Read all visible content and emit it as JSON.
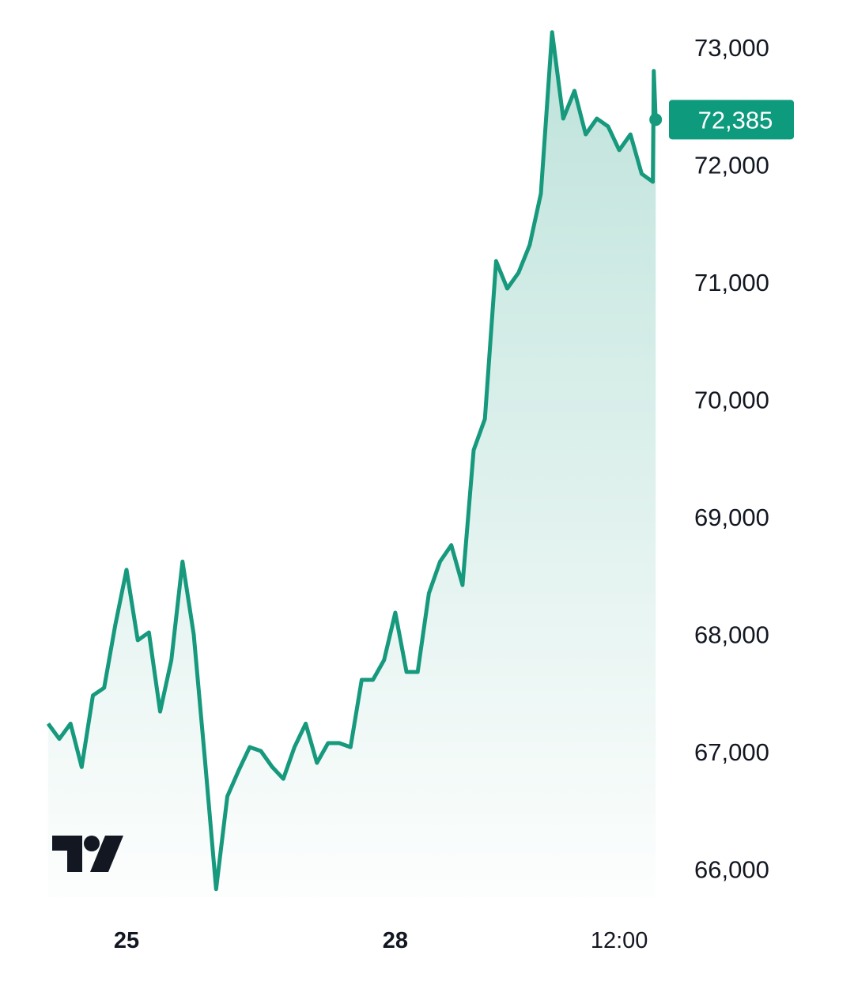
{
  "chart_data": {
    "type": "area",
    "title": "",
    "xlabel": "",
    "ylabel": "",
    "ylim": [
      65800,
      73200
    ],
    "grid": false,
    "legend": "none",
    "colors": {
      "line": "#16997c",
      "fill": "#16997c",
      "last_price_badge": "#0d9a7d",
      "text": "#131722",
      "logo": "#131722"
    },
    "y_ticks": [
      "73,000",
      "72,000",
      "71,000",
      "70,000",
      "69,000",
      "68,000",
      "67,000",
      "66,000"
    ],
    "y_tick_values": [
      73000,
      72000,
      71000,
      70000,
      69000,
      68000,
      67000,
      66000
    ],
    "x_ticks": [
      {
        "label": "25",
        "at": "25 00:00",
        "bold": true
      },
      {
        "label": "28",
        "at": "28 00:00",
        "bold": true
      },
      {
        "label": "12:00",
        "at": "30 12:00",
        "bold": false
      }
    ],
    "last_price_label": "72,385",
    "last_price": 72385,
    "logo": "TV",
    "series": [
      {
        "x": [
          "24 03:00",
          "24 06:00",
          "24 09:00",
          "24 12:00",
          "24 15:00",
          "24 18:00",
          "24 21:00",
          "25 00:00",
          "25 03:00",
          "25 06:00",
          "25 09:00",
          "25 12:00",
          "25 15:00",
          "25 18:00",
          "25 21:00",
          "26 00:00",
          "26 03:00",
          "26 06:00",
          "26 09:00",
          "26 12:00",
          "26 15:00",
          "26 18:00",
          "26 21:00",
          "27 00:00",
          "27 03:00",
          "27 06:00",
          "27 09:00",
          "27 12:00",
          "27 15:00",
          "27 18:00",
          "27 21:00",
          "28 00:00",
          "28 03:00",
          "28 06:00",
          "28 09:00",
          "28 12:00",
          "28 15:00",
          "28 18:00",
          "28 21:00",
          "29 00:00",
          "29 03:00",
          "29 06:00",
          "29 09:00",
          "29 12:00",
          "29 15:00",
          "29 18:00",
          "29 21:00",
          "30 00:00",
          "30 03:00",
          "30 06:00",
          "30 09:00",
          "30 12:00",
          "30 15:00",
          "30 18:00",
          "30 21:00",
          "30 21:15",
          "30 21:45"
        ],
        "values": [
          67240,
          67110,
          67240,
          66870,
          67480,
          67545,
          68080,
          68550,
          67950,
          68017,
          67343,
          67781,
          68620,
          68000,
          66939,
          65830,
          66620,
          66838,
          67040,
          67007,
          66872,
          66770,
          67040,
          67240,
          66906,
          67074,
          67074,
          67040,
          67613,
          67613,
          67781,
          68185,
          67680,
          67680,
          68350,
          68620,
          68760,
          68420,
          69570,
          69835,
          71180,
          70946,
          71080,
          71316,
          71754,
          73130,
          72394,
          72630,
          72259,
          72394,
          72327,
          72125,
          72259,
          71923,
          71855,
          72800,
          72385
        ]
      }
    ]
  }
}
